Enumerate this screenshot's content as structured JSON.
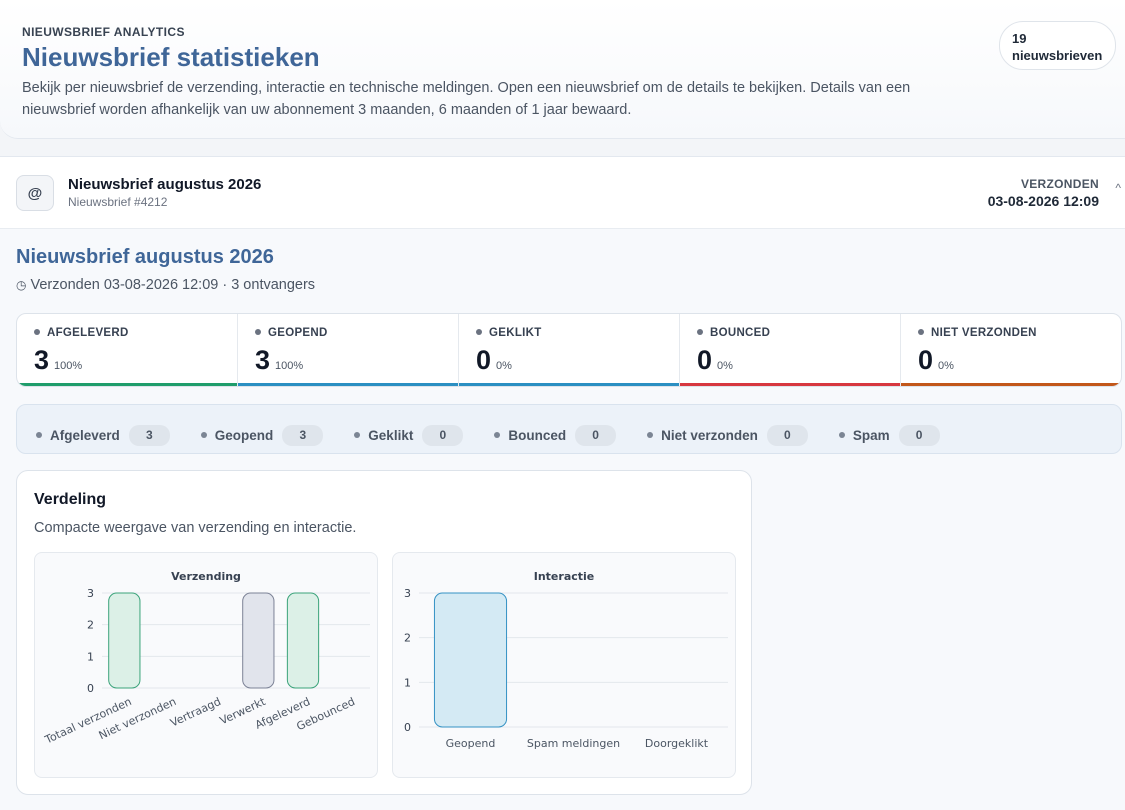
{
  "header": {
    "eyebrow": "NIEUWSBRIEF ANALYTICS",
    "title": "Nieuwsbrief statistieken",
    "description": "Bekijk per nieuwsbrief de verzending, interactie en technische meldingen. Open een nieuwsbrief om de details te bekijken. Details van een nieuwsbrief worden afhankelijk van uw abonnement 3 maanden, 6 maanden of 1 jaar bewaard.",
    "count_number": "19",
    "count_label": "nieuwsbrieven"
  },
  "newsletter": {
    "icon": "at-icon",
    "name": "Nieuwsbrief augustus 2026",
    "id_label": "Nieuwsbrief #4212",
    "sent_label": "VERZONDEN",
    "sent_date": "03-08-2026 12:09",
    "toggle": "^",
    "detail_title": "Nieuwsbrief augustus 2026",
    "detail_meta": "Verzonden 03-08-2026 12:09 · 3 ontvangers"
  },
  "stats": [
    {
      "label": "AFGELEVERD",
      "value": "3",
      "pct": "100%",
      "color": "#1f9d6b"
    },
    {
      "label": "GEOPEND",
      "value": "3",
      "pct": "100%",
      "color": "#2b8fc2"
    },
    {
      "label": "GEKLIKT",
      "value": "0",
      "pct": "0%",
      "color": "#2b8fc2"
    },
    {
      "label": "BOUNCED",
      "value": "0",
      "pct": "0%",
      "color": "#d7373f"
    },
    {
      "label": "NIET VERZONDEN",
      "value": "0",
      "pct": "0%",
      "color": "#c2571a"
    }
  ],
  "chips": [
    {
      "name": "Afgeleverd",
      "count": "3"
    },
    {
      "name": "Geopend",
      "count": "3"
    },
    {
      "name": "Geklikt",
      "count": "0"
    },
    {
      "name": "Bounced",
      "count": "0"
    },
    {
      "name": "Niet verzonden",
      "count": "0"
    },
    {
      "name": "Spam",
      "count": "0"
    }
  ],
  "distribution": {
    "title": "Verdeling",
    "subtitle": "Compacte weergave van verzending en interactie."
  },
  "chart_data": [
    {
      "type": "bar",
      "title": "Verzending",
      "categories": [
        "Totaal verzonden",
        "Niet verzonden",
        "Vertraagd",
        "Verwerkt",
        "Afgeleverd",
        "Gebounced"
      ],
      "values": [
        3,
        0,
        0,
        3,
        3,
        0
      ],
      "ylim": [
        0,
        3
      ],
      "yticks": [
        0,
        1,
        2,
        3
      ],
      "bar_fills": [
        "#dcf0e7",
        "#dcf0e7",
        "#dcf0e7",
        "#e1e4ec",
        "#dcf0e7",
        "#dcf0e7"
      ],
      "bar_strokes": [
        "#3aa37a",
        "#3aa37a",
        "#3aa37a",
        "#7c8296",
        "#3aa37a",
        "#3aa37a"
      ],
      "grid": true
    },
    {
      "type": "bar",
      "title": "Interactie",
      "categories": [
        "Geopend",
        "Spam meldingen",
        "Doorgeklikt"
      ],
      "values": [
        3,
        0,
        0
      ],
      "ylim": [
        0,
        3
      ],
      "yticks": [
        0,
        1,
        2,
        3
      ],
      "bar_fills": [
        "#d4eaf4",
        "#d4eaf4",
        "#d4eaf4"
      ],
      "bar_strokes": [
        "#3592c4",
        "#3592c4",
        "#3592c4"
      ],
      "grid": true
    }
  ]
}
